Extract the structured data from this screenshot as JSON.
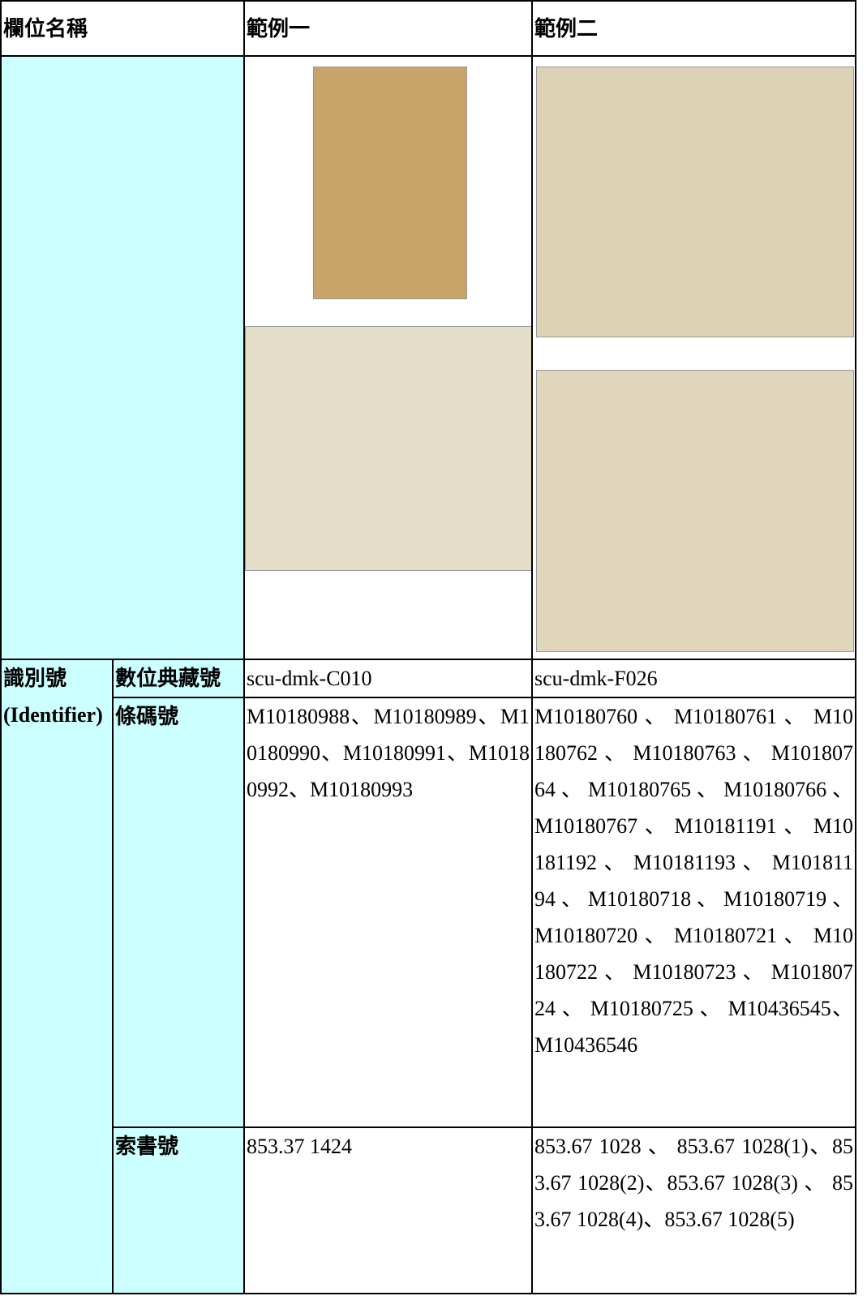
{
  "table": {
    "header": [
      "欄位名稱",
      "範例一",
      "範例二"
    ],
    "group": [
      "識別號",
      "(Identifier)"
    ],
    "rows": [
      {
        "field": "數位典藏號",
        "example1": "scu-dmk-C010",
        "example2": "scu-dmk-F026"
      },
      {
        "field": "條碼號",
        "example1": "M10180988、M10180989、M10180990、M10180991、M10180992、M10180993",
        "example2": "M10180760 、 M10180761 、 M10180762 、 M10180763 、 M10180764 、 M10180765 、 M10180766 、 M10180767 、 M10181191 、 M10181192 、 M10181193 、 M10181194 、 M10180718 、 M10180719 、 M10180720 、 M10180721 、 M10180722 、 M10180723 、 M10180724 、 M10180725 、 M10436545、M10436546"
      },
      {
        "field": "索書號",
        "example1": "853.37 1424",
        "example2": "853.67 1028 、 853.67 1028(1)、853.67 1028(2)、853.67 1028(3) 、 853.67 1028(4)、853.67 1028(5)"
      }
    ]
  }
}
